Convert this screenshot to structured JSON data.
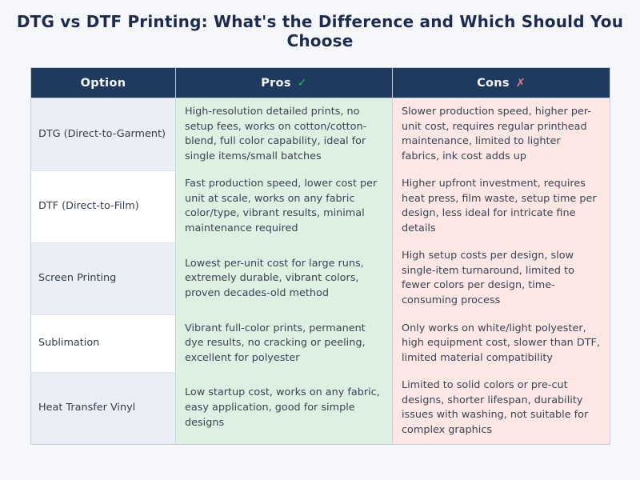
{
  "page": {
    "title": "DTG vs DTF Printing: What's the Difference and Which Should You Choose"
  },
  "table": {
    "headers": {
      "option": "Option",
      "pros": "Pros",
      "pros_icon": "✓",
      "cons": "Cons",
      "cons_icon": "✗"
    },
    "rows": [
      {
        "option": "DTG (Direct-to-Garment)",
        "pros": "High-resolution detailed prints, no setup fees, works on cotton/cotton-blend, full color capability, ideal for single items/small batches",
        "cons": "Slower production speed, higher per-unit cost, requires regular printhead maintenance, limited to lighter fabrics, ink cost adds up"
      },
      {
        "option": "DTF (Direct-to-Film)",
        "pros": "Fast production speed, lower cost per unit at scale, works on any fabric color/type, vibrant results, minimal maintenance required",
        "cons": "Higher upfront investment, requires heat press, film waste, setup time per design, less ideal for intricate fine details"
      },
      {
        "option": "Screen Printing",
        "pros": "Lowest per-unit cost for large runs, extremely durable, vibrant colors, proven decades-old method",
        "cons": "High setup costs per design, slow single-item turnaround, limited to fewer colors per design, time-consuming process"
      },
      {
        "option": "Sublimation",
        "pros": "Vibrant full-color prints, permanent dye results, no cracking or peeling, excellent for polyester",
        "cons": "Only works on white/light polyester, high equipment cost, slower than DTF, limited material compatibility"
      },
      {
        "option": "Heat Transfer Vinyl",
        "pros": "Low startup cost, works on any fabric, easy application, good for simple designs",
        "cons": "Limited to solid colors or pre-cut designs, shorter lifespan, durability issues with washing, not suitable for complex graphics"
      }
    ],
    "colors": {
      "header_bg": "#1e3a5f",
      "header_text": "#f7f8fa",
      "pros_bg": "#ddf0e2",
      "cons_bg": "#fce7e4",
      "option_stripe_bg": "#ebeff5",
      "check_icon": "#2eb872",
      "x_icon": "#e77c8d",
      "title_text": "#1d2b4f",
      "body_text": "#3b4454",
      "page_bg": "#f5f7fa"
    }
  }
}
